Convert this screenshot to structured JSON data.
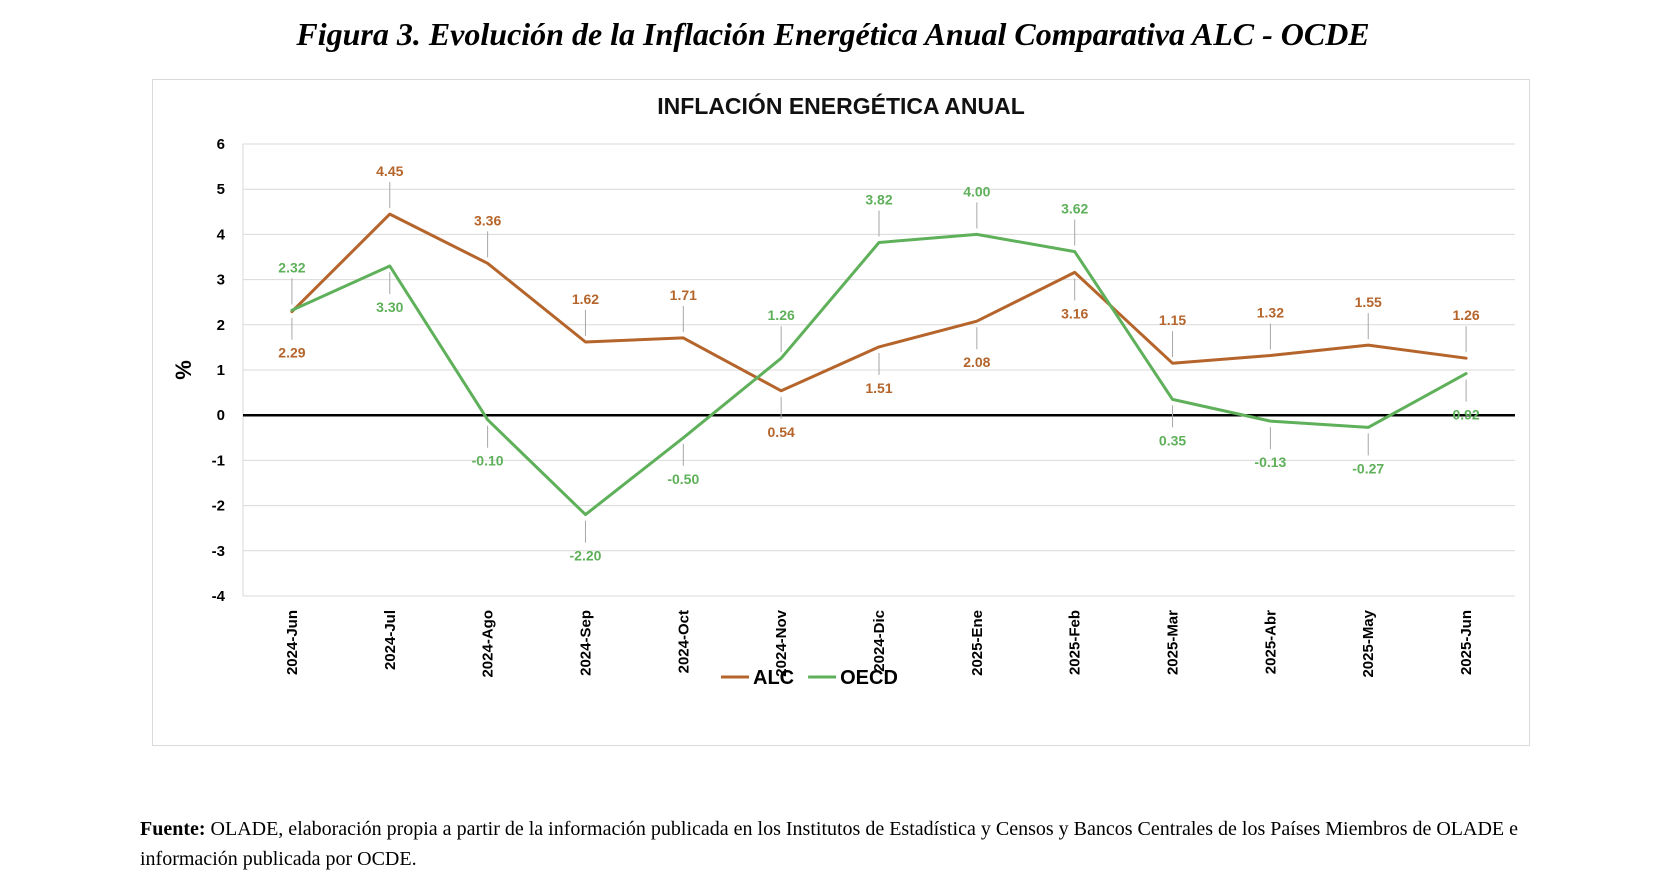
{
  "figure_title": "Figura 3. Evolución de la Inflación Energética Anual Comparativa ALC - OCDE",
  "source": {
    "label": "Fuente:",
    "text": "OLADE, elaboración propia a partir de la información publicada en los Institutos de Estadística y Censos y Bancos Centrales de los Países Miembros de OLADE e información publicada por OCDE."
  },
  "colors": {
    "ALC": "#b5652b",
    "OECD": "#5fb05a",
    "grid": "#d9d9d9",
    "zero_line": "#000000"
  },
  "chart_data": {
    "type": "line",
    "title": "INFLACIÓN ENERGÉTICA ANUAL",
    "xlabel": "",
    "ylabel": "%",
    "ylim": [
      -4,
      6
    ],
    "yticks": [
      6,
      5,
      4,
      3,
      2,
      1,
      0,
      -1,
      -2,
      -3,
      -4
    ],
    "grid": true,
    "legend_position": "bottom",
    "categories": [
      "2024-Jun",
      "2024-Jul",
      "2024-Ago",
      "2024-Sep",
      "2024-Oct",
      "2024-Nov",
      "2024-Dic",
      "2025-Ene",
      "2025-Feb",
      "2025-Mar",
      "2025-Abr",
      "2025-May",
      "2025-Jun"
    ],
    "series": [
      {
        "name": "ALC",
        "values": [
          2.29,
          4.45,
          3.36,
          1.62,
          1.71,
          0.54,
          1.51,
          2.08,
          3.16,
          1.15,
          1.32,
          1.55,
          1.26
        ],
        "labels": [
          "2.29",
          "4.45",
          "3.36",
          "1.62",
          "1.71",
          "0.54",
          "1.51",
          "2.08",
          "3.16",
          "1.15",
          "1.32",
          "1.55",
          "1.26"
        ]
      },
      {
        "name": "OECD",
        "values": [
          2.32,
          3.3,
          -0.1,
          -2.2,
          -0.5,
          1.26,
          3.82,
          4.0,
          3.62,
          0.35,
          -0.13,
          -0.27,
          0.92
        ],
        "labels": [
          "2.32",
          "3.30",
          "-0.10",
          "-2.20",
          "-0.50",
          "1.26",
          "3.82",
          "4.00",
          "3.62",
          "0.35",
          "-0.13",
          "-0.27",
          "0.92"
        ]
      }
    ]
  }
}
